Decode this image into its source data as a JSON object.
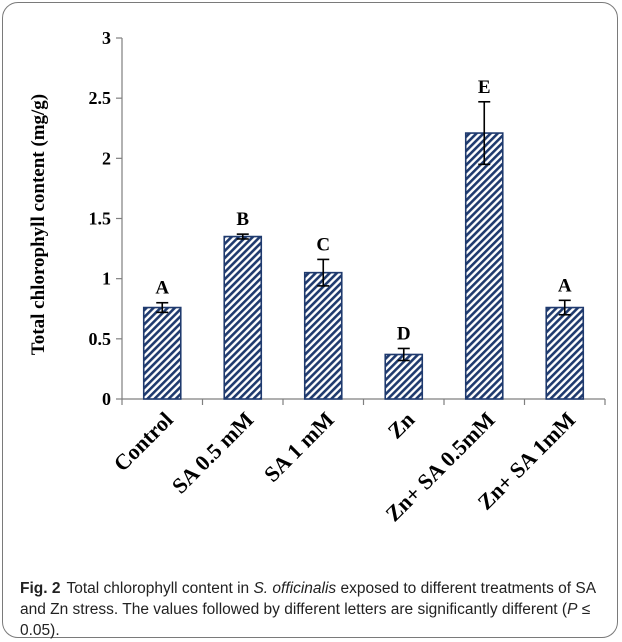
{
  "chart_data": {
    "type": "bar",
    "ylabel": "Total chlorophyll content (mg/g)",
    "ylim": [
      0,
      3
    ],
    "yticks": [
      "0",
      "0.5",
      "1",
      "1.5",
      "2",
      "2.5",
      "3"
    ],
    "categories": [
      "Control",
      "SA 0.5 mM",
      "SA 1 mM",
      "Zn",
      "Zn+ SA 0.5mM",
      "Zn+ SA 1mM"
    ],
    "values": [
      0.76,
      1.35,
      1.05,
      0.37,
      2.21,
      0.76
    ],
    "errors": [
      0.04,
      0.02,
      0.11,
      0.05,
      0.26,
      0.06
    ],
    "significance": [
      "A",
      "B",
      "C",
      "D",
      "E",
      "A"
    ],
    "bar_fill": "diagonal-hatch",
    "bar_color": "#1f3a6e",
    "grid": false
  },
  "caption": {
    "label": "Fig. 2",
    "text_before": "Total chlorophyll content in ",
    "species": "S. officinalis",
    "text_after": " exposed to different treatments of SA and Zn stress. The values followed by different letters are significantly different (",
    "p_symbol": "P",
    "p_rest": " ≤ 0.05)."
  }
}
